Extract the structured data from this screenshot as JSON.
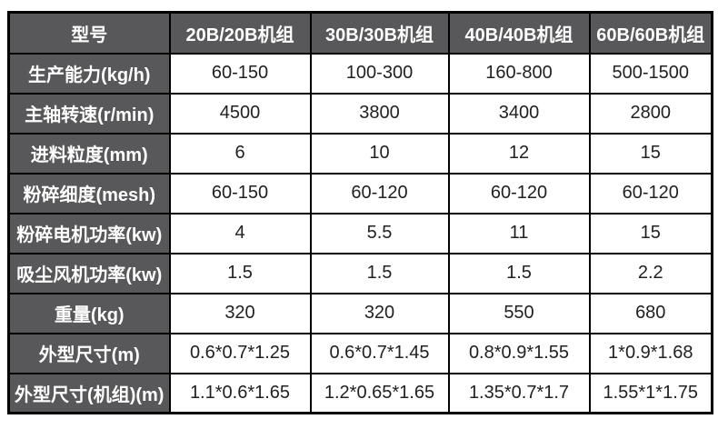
{
  "table": {
    "header": [
      "型号",
      "20B/20B机组",
      "30B/30B机组",
      "40B/40B机组",
      "60B/60B机组"
    ],
    "rows": [
      {
        "label": "生产能力(kg/h)",
        "values": [
          "60-150",
          "100-300",
          "160-800",
          "500-1500"
        ]
      },
      {
        "label": "主轴转速(r/min)",
        "values": [
          "4500",
          "3800",
          "3400",
          "2800"
        ]
      },
      {
        "label": "进料粒度(mm)",
        "values": [
          "6",
          "10",
          "12",
          "15"
        ]
      },
      {
        "label": "粉碎细度(mesh)",
        "values": [
          "60-150",
          "60-120",
          "60-120",
          "60-120"
        ]
      },
      {
        "label": "粉碎电机功率(kw)",
        "values": [
          "4",
          "5.5",
          "11",
          "15"
        ]
      },
      {
        "label": "吸尘风机功率(kw)",
        "values": [
          "1.5",
          "1.5",
          "1.5",
          "2.2"
        ]
      },
      {
        "label": "重量(kg)",
        "values": [
          "320",
          "320",
          "550",
          "680"
        ]
      },
      {
        "label": "外型尺寸(m)",
        "values": [
          "0.6*0.7*1.25",
          "0.6*0.7*1.45",
          "0.8*0.9*1.55",
          "1*0.9*1.68"
        ]
      },
      {
        "label": "外型尺寸(机组)(m)",
        "values": [
          "1.1*0.6*1.65",
          "1.2*0.65*1.65",
          "1.35*0.7*1.7",
          "1.55*1*1.75"
        ]
      }
    ],
    "colors": {
      "header_bg": "#58585a",
      "header_text": "#ffffff",
      "cell_bg": "#ffffff",
      "cell_text": "#212121",
      "border": "#000000"
    }
  }
}
